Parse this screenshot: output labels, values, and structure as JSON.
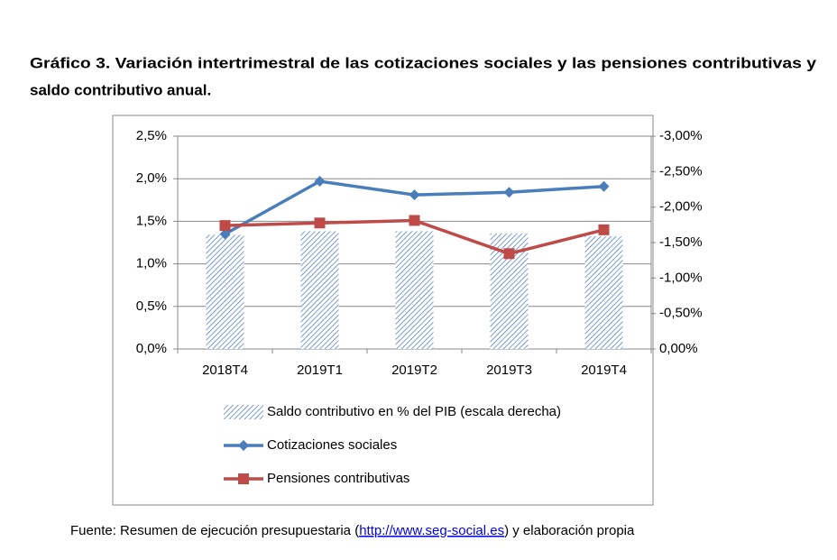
{
  "chart_data": {
    "type": "bar-line",
    "title_lines": [
      "Gráfico 3. Variación intertrimestral de las cotizaciones sociales y las pensiones contributivas y",
      "saldo contributivo anual."
    ],
    "categories": [
      "2018T4",
      "2019T1",
      "2019T2",
      "2019T3",
      "2019T4"
    ],
    "series": [
      {
        "name": "Saldo contributivo en % del PIB (escala derecha)",
        "type": "bar",
        "axis": "y2",
        "color": "#4472c4",
        "values": [
          -1.61,
          -1.66,
          -1.66,
          -1.63,
          -1.59
        ]
      },
      {
        "name": "Cotizaciones sociales",
        "type": "line",
        "color": "#4a7ebb",
        "values": [
          1.35,
          1.97,
          1.81,
          1.84,
          1.91
        ]
      },
      {
        "name": "Pensiones contributivas",
        "type": "line",
        "color": "#be4b48",
        "values": [
          1.45,
          1.48,
          1.51,
          1.12,
          1.4
        ]
      }
    ],
    "ylim": [
      0,
      2.5
    ],
    "yticks": [
      {
        "value": 0,
        "label": "0,0%"
      },
      {
        "value": 0.5,
        "label": "0,5%"
      },
      {
        "value": 1,
        "label": "1,0%"
      },
      {
        "value": 1.5,
        "label": "1,5%"
      },
      {
        "value": 2,
        "label": "2,0%"
      },
      {
        "value": 2.5,
        "label": "2,5%"
      }
    ],
    "y2lim": [
      0,
      -3
    ],
    "y2ticks": [
      {
        "value": 0,
        "label": "0,00%"
      },
      {
        "value": -0.5,
        "label": "-0,50%"
      },
      {
        "value": -1,
        "label": "-1,00%"
      },
      {
        "value": -1.5,
        "label": "-1,50%"
      },
      {
        "value": -2,
        "label": "-2,00%"
      },
      {
        "value": -2.5,
        "label": "-2,50%"
      },
      {
        "value": -3,
        "label": "-3,00%"
      }
    ],
    "grid": true,
    "legend": "bottom",
    "source": {
      "before": "Fuente: Resumen de ejecución presupuestaria (",
      "link": "http://www.seg-social.es",
      "after": ") y elaboración propia"
    }
  }
}
